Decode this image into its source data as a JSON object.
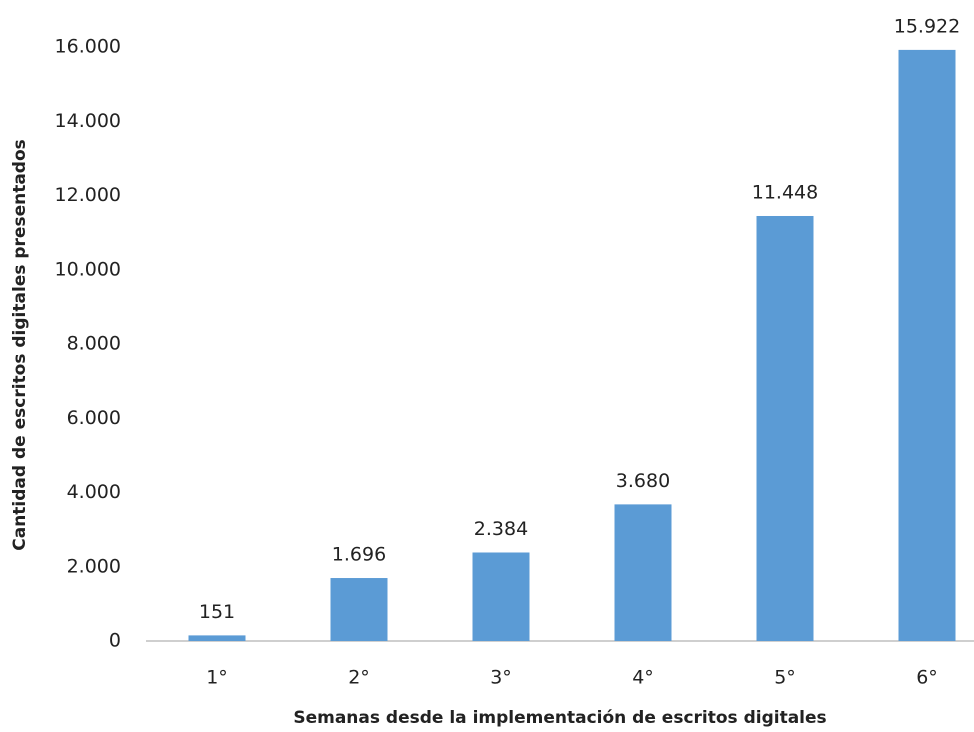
{
  "chart_data": {
    "type": "bar",
    "x_label": "Semanas desde la implementación de escritos digitales",
    "y_label": "Cantidad de escritos digitales presentados",
    "categories": [
      "1°",
      "2°",
      "3°",
      "4°",
      "5°",
      "6°"
    ],
    "values": [
      151,
      1696,
      2384,
      3680,
      11448,
      15922
    ],
    "value_labels": [
      "151",
      "1.696",
      "2.384",
      "3.680",
      "11.448",
      "15.922"
    ],
    "color": "#5b9bd5",
    "ylim": [
      0,
      16000
    ],
    "yticks": [
      0,
      {
        "value": 2000,
        "label": "2.000"
      },
      {
        "value": 4000,
        "label": "4.000"
      },
      {
        "value": 6000,
        "label": "6.000"
      },
      {
        "value": 8000,
        "label": "8.000"
      },
      {
        "value": 10000,
        "label": "10.000"
      },
      {
        "value": 12000,
        "label": "12.000"
      },
      {
        "value": 14000,
        "label": "14.000"
      },
      {
        "value": 16000,
        "label": "16.000"
      }
    ],
    "grid": false
  }
}
